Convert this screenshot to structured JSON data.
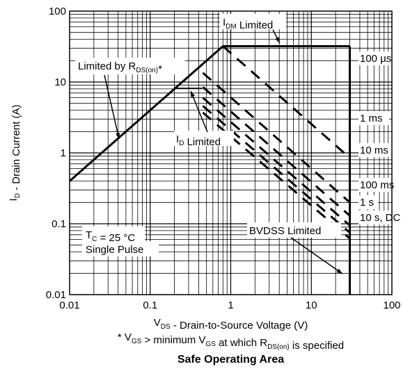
{
  "chart_data": {
    "type": "line",
    "title": "Safe Operating Area",
    "xlabel": "V_DS - Drain-to-Source Voltage (V)",
    "ylabel": "I_D - Drain Current (A)",
    "footnote": "* V_GS > minimum V_GS at which R_DS(on) is specified",
    "x_scale": "log",
    "y_scale": "log",
    "xlim": [
      0.01,
      100
    ],
    "ylim": [
      0.01,
      100
    ],
    "grid": true,
    "x_ticks": [
      "0.01",
      "0.1",
      "1",
      "10",
      "100"
    ],
    "y_ticks": [
      "0.01",
      "0.1",
      "1",
      "10",
      "100"
    ],
    "series": [
      {
        "name": "Limited by RDS(on)*",
        "style": "solid",
        "x": [
          0.01,
          0.8
        ],
        "y": [
          0.4,
          32
        ]
      },
      {
        "name": "IDM Limited",
        "style": "solid",
        "x": [
          0.8,
          30
        ],
        "y": [
          32,
          32
        ]
      },
      {
        "name": "BVDSS Limited",
        "style": "solid",
        "x": [
          30,
          30
        ],
        "y": [
          32,
          0.01
        ]
      },
      {
        "name": "100 µs",
        "style": "dashed",
        "x": [
          0.8,
          30
        ],
        "y": [
          32,
          0.85
        ]
      },
      {
        "name": "1 ms",
        "style": "dashed",
        "x": [
          0.45,
          30
        ],
        "y": [
          13.5,
          0.2
        ]
      },
      {
        "name": "10 ms",
        "style": "dashed",
        "x": [
          0.45,
          30
        ],
        "y": [
          8.5,
          0.13
        ]
      },
      {
        "name": "100 ms",
        "style": "dashed",
        "x": [
          0.45,
          30
        ],
        "y": [
          6.0,
          0.095
        ]
      },
      {
        "name": "1 s",
        "style": "dashed",
        "x": [
          0.45,
          30
        ],
        "y": [
          4.6,
          0.075
        ]
      },
      {
        "name": "10 s, DC",
        "style": "dashed",
        "x": [
          0.45,
          30
        ],
        "y": [
          3.7,
          0.062
        ]
      }
    ],
    "annotations": {
      "idm": "I_DM Limited",
      "rds": "Limited by R_DS(on)*",
      "id": "I_D Limited",
      "bvdss": "BVDSS Limited",
      "tc": "T_C = 25 °C",
      "pulse": "Single Pulse",
      "curve_labels": [
        "100 µs",
        "1 ms",
        "10 ms",
        "100 ms",
        "1 s",
        "10 s, DC"
      ]
    }
  }
}
